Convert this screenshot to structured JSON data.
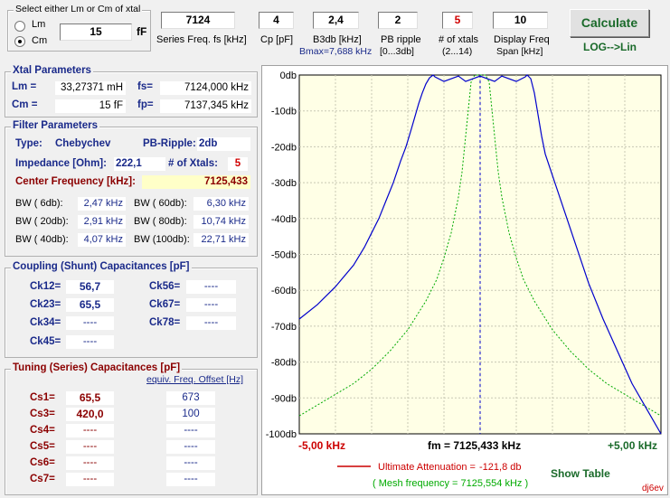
{
  "select_group": {
    "title": "Select either Lm or Cm of xtal",
    "opt_lm": "Lm",
    "opt_cm": "Cm",
    "selected": "Cm",
    "value": "15",
    "unit": "fF"
  },
  "params": [
    {
      "value": "7124",
      "label": "Series Freq. fs [kHz]",
      "red": false
    },
    {
      "value": "4",
      "label": "Cp [pF]",
      "red": false
    },
    {
      "value": "2,4",
      "label": "B3db [kHz]",
      "sublabel": "Bmax=7,688 kHz",
      "red": false
    },
    {
      "value": "2",
      "label": "PB ripple",
      "sublabel": "[0...3db]",
      "red": false
    },
    {
      "value": "5",
      "label": "# of xtals",
      "sublabel": "(2...14)",
      "red": true
    },
    {
      "value": "10",
      "label": "Display Freq",
      "sublabel": "Span [kHz]",
      "red": false
    }
  ],
  "calculate_label": "Calculate",
  "loglin_label": "LOG-->Lin",
  "xtal": {
    "title": "Xtal Parameters",
    "lm_label": "Lm =",
    "lm_value": "33,27371 mH",
    "fs_label": "fs=",
    "fs_value": "7124,000 kHz",
    "cm_label": "Cm =",
    "cm_value": "15  fF",
    "fp_label": "fp=",
    "fp_value": "7137,345 kHz"
  },
  "filter": {
    "title": "Filter Parameters",
    "type_label": "Type:",
    "type_value": "Chebychev",
    "ripple_label": "PB-Ripple:",
    "ripple_value": "2db",
    "imp_label": "Impedance [Ohm]:",
    "imp_value": "222,1",
    "nx_label": "# of Xtals:",
    "nx_value": "5",
    "cf_label": "Center Frequency [kHz]:",
    "cf_value": "7125,433",
    "bw": [
      {
        "label": "BW (  6db):",
        "value": "2,47 kHz"
      },
      {
        "label": "BW ( 60db):",
        "value": "6,30 kHz"
      },
      {
        "label": "BW ( 20db):",
        "value": "2,91 kHz"
      },
      {
        "label": "BW ( 80db):",
        "value": "10,74 kHz"
      },
      {
        "label": "BW ( 40db):",
        "value": "4,07 kHz"
      },
      {
        "label": "BW (100db):",
        "value": "22,71 kHz"
      }
    ]
  },
  "coupling": {
    "title": "Coupling (Shunt) Capacitances [pF]",
    "items": [
      {
        "label": "Ck12=",
        "value": "56,7"
      },
      {
        "label": "Ck56=",
        "value": "----"
      },
      {
        "label": "Ck23=",
        "value": "65,5"
      },
      {
        "label": "Ck67=",
        "value": "----"
      },
      {
        "label": "Ck34=",
        "value": "----"
      },
      {
        "label": "Ck78=",
        "value": "----"
      },
      {
        "label": "Ck45=",
        "value": "----"
      }
    ]
  },
  "tuning": {
    "title": "Tuning (Series) Capacitances [pF]",
    "offset_header": "equiv. Freq. Offset [Hz]",
    "items": [
      {
        "label": "Cs1=",
        "value": "65,5",
        "offset": "673"
      },
      {
        "label": "Cs3=",
        "value": "420,0",
        "offset": "100"
      },
      {
        "label": "Cs4=",
        "value": "----",
        "offset": "----"
      },
      {
        "label": "Cs5=",
        "value": "----",
        "offset": "----"
      },
      {
        "label": "Cs6=",
        "value": "----",
        "offset": "----"
      },
      {
        "label": "Cs7=",
        "value": "----",
        "offset": "----"
      }
    ]
  },
  "chart": {
    "y_ticks": [
      "0db",
      "-10db",
      "-20db",
      "-30db",
      "-40db",
      "-50db",
      "-60db",
      "-70db",
      "-80db",
      "-90db",
      "-100db"
    ],
    "x_left": "-5,00 kHz",
    "x_center": "fm = 7125,433 kHz",
    "x_right": "+5,00 kHz",
    "legend_attn_label": "Ultimate Attenuation =",
    "legend_attn_value": "-121,8 db",
    "legend_mesh": "( Mesh frequency = 7125,554 kHz )",
    "show_table": "Show Table",
    "signature": "dj6ev",
    "colors": {
      "response": "#0000cc",
      "mesh": "#00aa00",
      "center": "#0000cc",
      "legend_line": "#cc0000",
      "plot_bg": "#ffffe6"
    }
  },
  "chart_data": {
    "type": "line",
    "xlabel": "",
    "ylabel": "",
    "xlim": [
      -5,
      5
    ],
    "ylim": [
      -100,
      0
    ],
    "grid": true,
    "series": [
      {
        "x": [
          -5.0,
          -4.5,
          -4.0,
          -3.5,
          -3.2,
          -3.0,
          -2.8,
          -2.6,
          -2.4,
          -2.2,
          -2.05,
          -1.9,
          -1.8,
          -1.7,
          -1.6,
          -1.5,
          -1.4,
          -1.3,
          -1.25,
          -1.0,
          -0.6,
          -0.4,
          0.0,
          0.4,
          0.6,
          1.0,
          1.25,
          1.3,
          1.4,
          1.5,
          1.6,
          1.7,
          1.8,
          2.0,
          2.4,
          2.8,
          3.0,
          3.4,
          3.8,
          4.2,
          4.6,
          5.0
        ],
        "y": [
          -68,
          -64,
          -59,
          -53,
          -48,
          -44,
          -40,
          -35,
          -30,
          -24,
          -20,
          -15,
          -11.5,
          -8,
          -5,
          -2.5,
          -0.8,
          0,
          -0.5,
          -1.8,
          -0.3,
          -1.8,
          -0.3,
          -1.8,
          -0.3,
          -1.8,
          -0.5,
          0,
          -1,
          -5,
          -11,
          -17,
          -22,
          -28,
          -40,
          -52,
          -58,
          -68,
          -77,
          -86,
          -93,
          -100
        ]
      },
      {
        "x": [
          -5.0,
          -4.5,
          -4.0,
          -3.5,
          -3.0,
          -2.5,
          -2.0,
          -1.5,
          -1.2,
          -1.0,
          -0.8,
          -0.6,
          -0.5,
          -0.4,
          -0.3,
          -0.25,
          -0.15,
          -0.1,
          0.0,
          0.1,
          0.15,
          0.25,
          0.3,
          0.4,
          0.5,
          0.6,
          0.8,
          1.0,
          1.2,
          1.5,
          2.0,
          2.5,
          3.0,
          3.5,
          4.0,
          4.5,
          5.0
        ],
        "y": [
          -95,
          -92,
          -89,
          -86,
          -82,
          -77,
          -71,
          -63,
          -57,
          -51,
          -44,
          -34,
          -27,
          -17,
          -7,
          -2,
          0,
          0,
          0,
          0,
          0,
          -2,
          -7,
          -17,
          -27,
          -34,
          -44,
          -51,
          -57,
          -63,
          -71,
          -77,
          -82,
          -86,
          -89,
          -92,
          -95
        ]
      }
    ]
  }
}
